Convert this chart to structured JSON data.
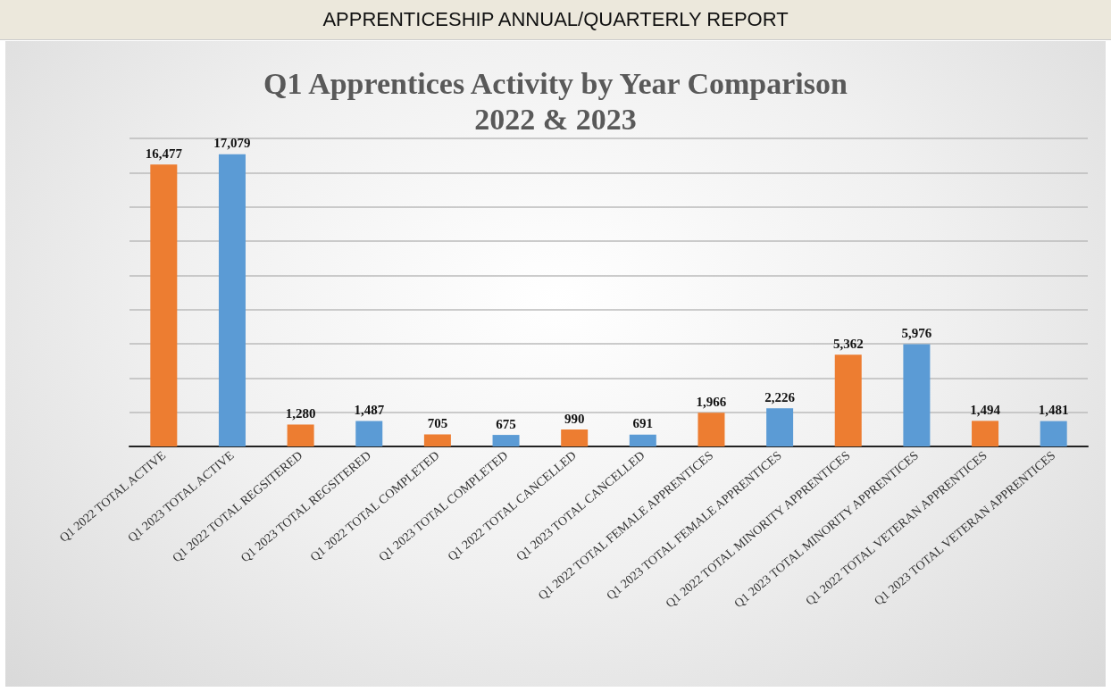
{
  "chart_data": {
    "type": "bar",
    "title": "APPRENTICESHIP ANNUAL/QUARTERLY REPORT",
    "subtitle": "Q1 Apprentices Activity by Year Comparison\n2022 & 2023",
    "categories": [
      "Q1 2022 TOTAL ACTIVE",
      "Q1 2023 TOTAL ACTIVE",
      "Q1 2022 TOTAL REGSITERED",
      "Q1 2023 TOTAL REGSITERED",
      "Q1 2022 TOTAL COMPLETED",
      "Q1 2023 TOTAL COMPLETED",
      "Q1 2022 TOTAL CANCELLED",
      "Q1 2023 TOTAL CANCELLED",
      "Q1 2022 TOTAL FEMALE APPRENTICES",
      "Q1 2023 TOTAL FEMALE APPRENTICES",
      "Q1 2022 TOTAL MINORITY APPRENTICES",
      "Q1 2023 TOTAL MINORITY APPRENTICES",
      "Q1 2022 TOTAL VETERAN APPRENTICES",
      "Q1 2023 TOTAL VETERAN APPRENTICES"
    ],
    "values": [
      16477,
      17079,
      1280,
      1487,
      705,
      675,
      990,
      691,
      1966,
      2226,
      5362,
      5976,
      1494,
      1481
    ],
    "colors": [
      "#ed7d31",
      "#5b9bd5",
      "#ed7d31",
      "#5b9bd5",
      "#ed7d31",
      "#5b9bd5",
      "#ed7d31",
      "#5b9bd5",
      "#ed7d31",
      "#5b9bd5",
      "#ed7d31",
      "#5b9bd5",
      "#ed7d31",
      "#5b9bd5"
    ],
    "ylim": [
      0,
      18000
    ],
    "yticks": [
      {
        "value": 0,
        "label": null
      },
      {
        "value": 2000,
        "label": null
      },
      {
        "value": 4000,
        "label": null
      },
      {
        "value": 6000,
        "label": null
      },
      {
        "value": 8000,
        "label": null
      },
      {
        "value": 10000,
        "label": null
      },
      {
        "value": 12000,
        "label": null
      },
      {
        "value": 14000,
        "label": null
      },
      {
        "value": 16000,
        "label": null
      },
      {
        "value": 18000,
        "label": null
      }
    ],
    "value_labels": [
      "16,477",
      "17,079",
      "1,280",
      "1,487",
      "705",
      "675",
      "990",
      "691",
      "1,966",
      "2,226",
      "5,362",
      "5,976",
      "1,494",
      "1,481"
    ],
    "grid": "y",
    "tick_labels": "x"
  }
}
